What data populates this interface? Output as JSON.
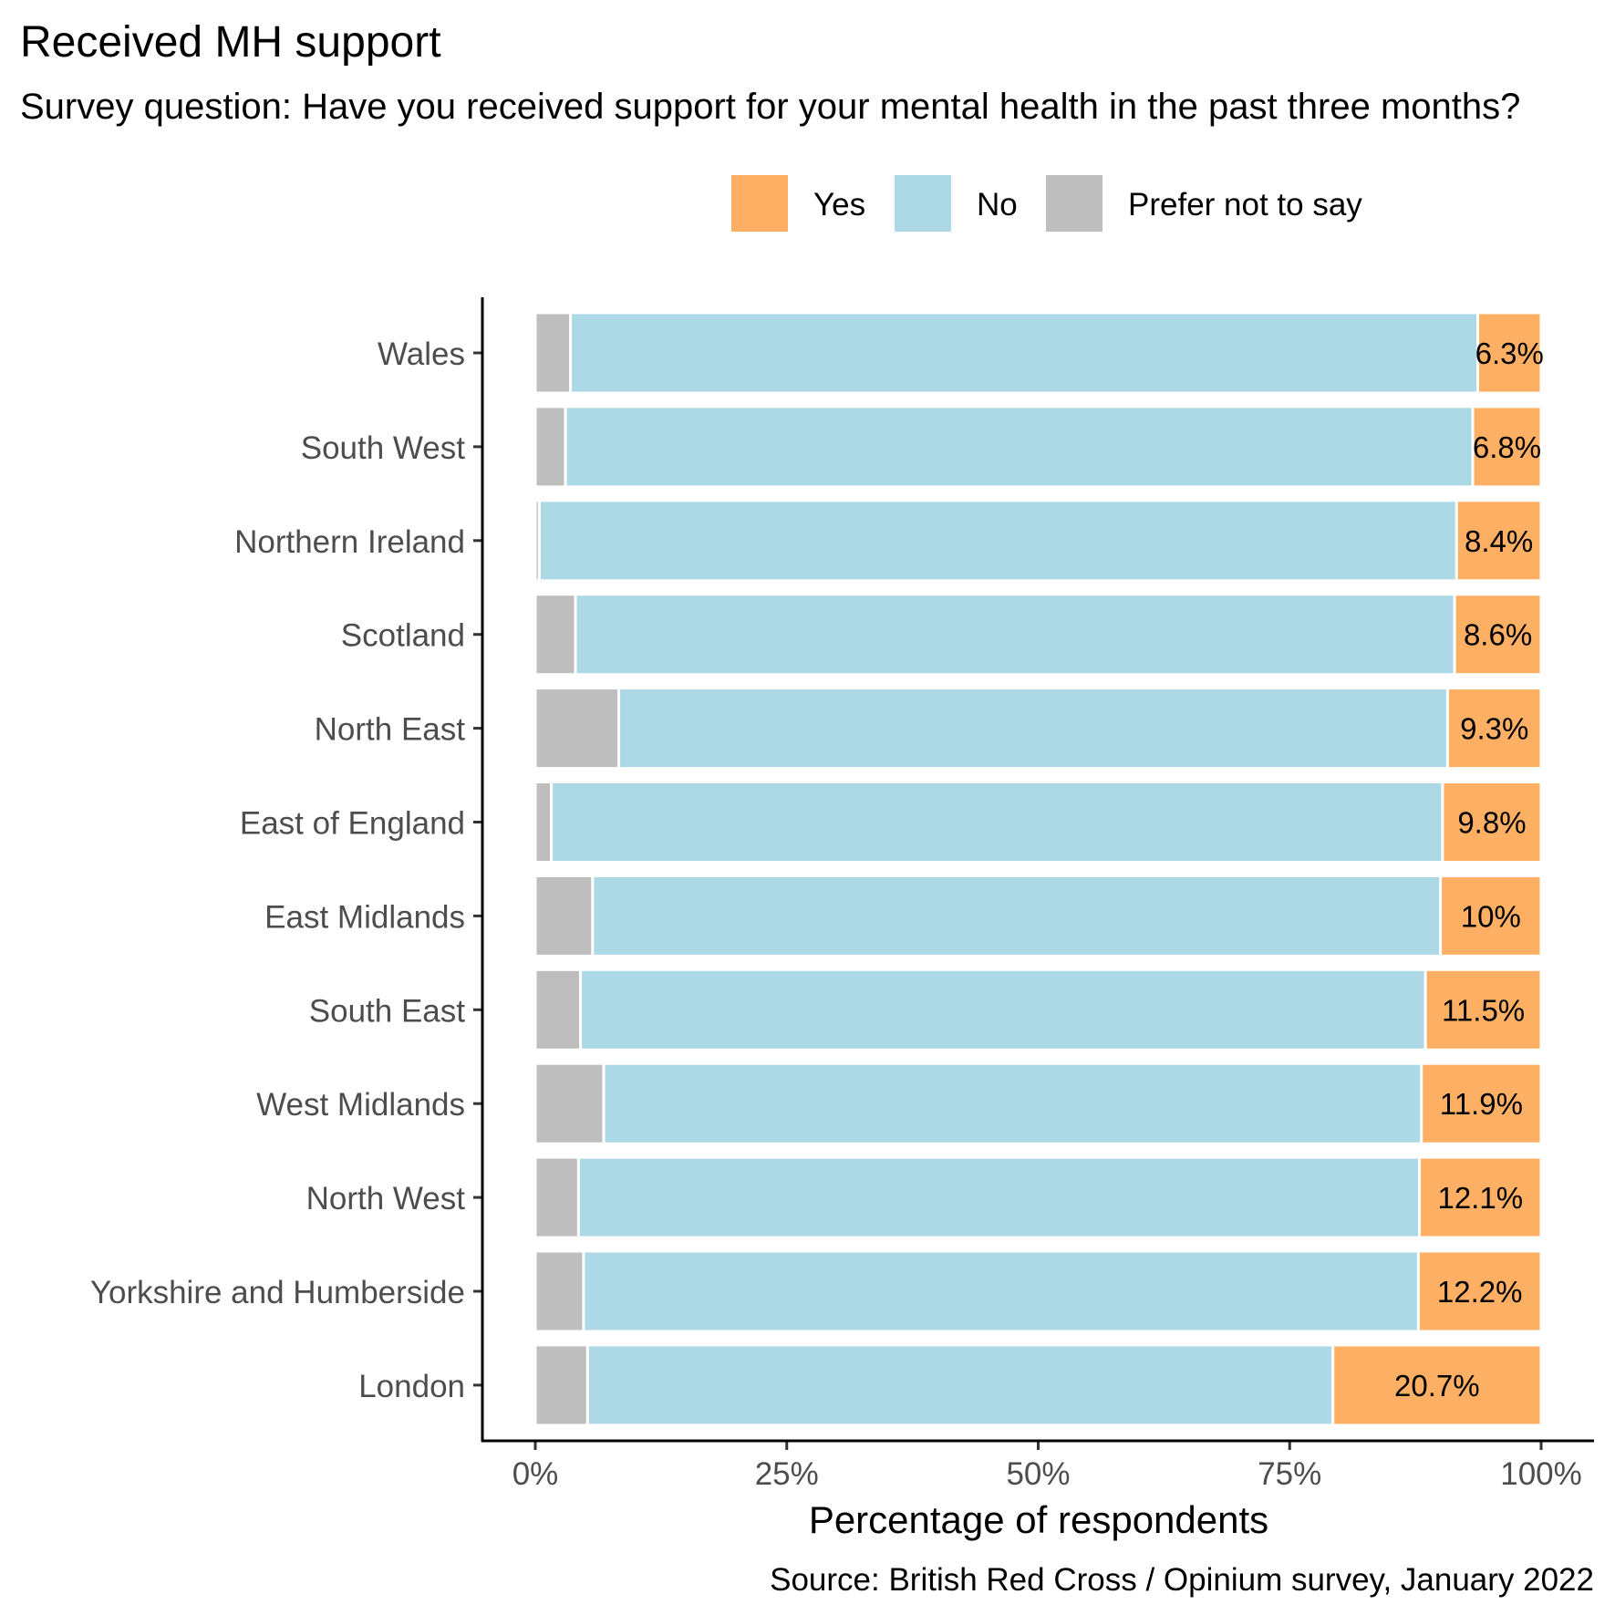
{
  "chart_data": {
    "type": "bar",
    "orientation": "horizontal",
    "stacked": true,
    "title": "Received MH support",
    "subtitle": "Survey question: Have you received support for your mental health in the past three months?",
    "xlabel": "Percentage of respondents",
    "ylabel": "",
    "caption": "Source: British Red Cross / Opinium survey, January 2022",
    "xlim": [
      0,
      100
    ],
    "x_ticks": [
      "0%",
      "25%",
      "50%",
      "75%",
      "100%"
    ],
    "x_tick_values": [
      0,
      25,
      50,
      75,
      100
    ],
    "legend_position": "top",
    "grid": false,
    "categories": [
      "Wales",
      "South West",
      "Northern Ireland",
      "Scotland",
      "North East",
      "East of England",
      "East Midlands",
      "South East",
      "West Midlands",
      "North West",
      "Yorkshire and Humberside",
      "London"
    ],
    "series": [
      {
        "name": "Prefer not to say",
        "color": "#bebebe",
        "values": [
          3.5,
          3.0,
          0.4,
          4.0,
          8.3,
          1.6,
          5.7,
          4.5,
          6.8,
          4.3,
          4.8,
          5.2
        ]
      },
      {
        "name": "No",
        "color": "#add8e6",
        "values": [
          90.2,
          90.2,
          91.2,
          87.4,
          82.4,
          88.6,
          84.3,
          84.0,
          81.3,
          83.6,
          83.0,
          74.1
        ]
      },
      {
        "name": "Yes",
        "color": "#fdb063",
        "values": [
          6.3,
          6.8,
          8.4,
          8.6,
          9.3,
          9.8,
          10.0,
          11.5,
          11.9,
          12.1,
          12.2,
          20.7
        ]
      }
    ],
    "data_labels": [
      "6.3%",
      "6.8%",
      "8.4%",
      "8.6%",
      "9.3%",
      "9.8%",
      "10%",
      "11.5%",
      "11.9%",
      "12.1%",
      "12.2%",
      "20.7%"
    ],
    "legend": {
      "entries": [
        {
          "label": "Yes",
          "color": "#fdb063"
        },
        {
          "label": "No",
          "color": "#add8e6"
        },
        {
          "label": "Prefer not to say",
          "color": "#bebebe"
        }
      ]
    }
  }
}
